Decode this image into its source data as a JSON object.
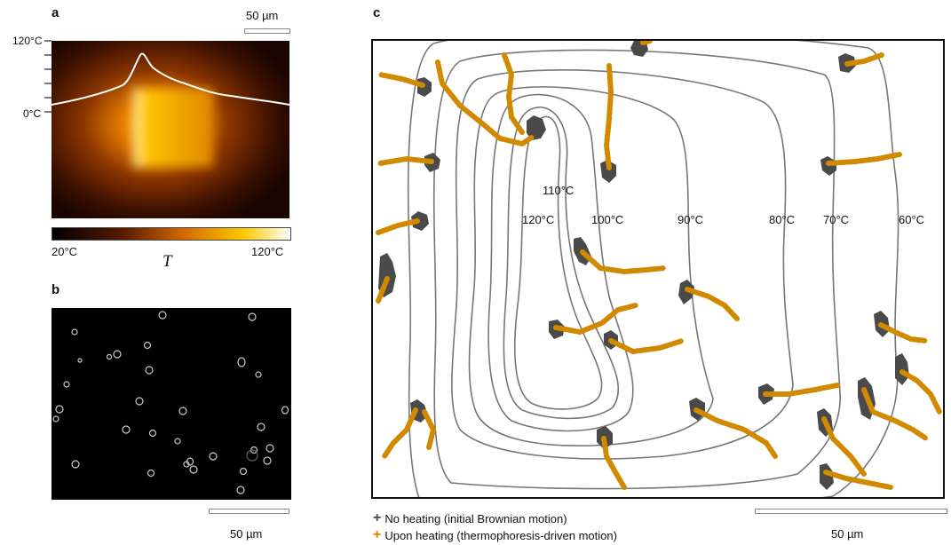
{
  "panel_a": {
    "label": "a",
    "scale_label": "50 µm",
    "tick_top": "120°C",
    "tick_zero": "0°C",
    "colorbar_min": "20°C",
    "colorbar_var": "T",
    "colorbar_max": "120°C",
    "colors": {
      "cmap_dark": "#1a0800",
      "cmap_mid": "#b24a00",
      "cmap_bright": "#ffb000",
      "cmap_white": "#ffffff"
    }
  },
  "panel_b": {
    "label": "b",
    "scale_label": "50 µm"
  },
  "panel_c": {
    "label": "c",
    "contour_labels": [
      "110°C",
      "120°C",
      "100°C",
      "90°C",
      "80°C",
      "70°C",
      "60°C"
    ],
    "legend": {
      "no_heating": "No heating (initial Brownian motion)",
      "upon_heating": "Upon heating (thermophoresis-driven motion)"
    },
    "scale_label": "50 µm",
    "colors": {
      "no_heating": "#4a4a4a",
      "upon_heating": "#d18a00",
      "contour": "#777777"
    }
  }
}
